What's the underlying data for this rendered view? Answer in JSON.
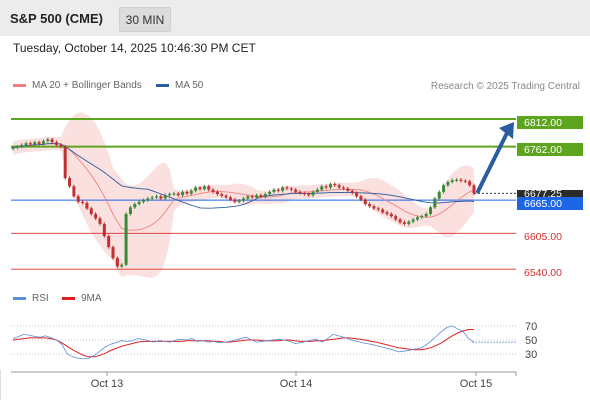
{
  "header": {
    "symbol": "S&P 500 (CME)",
    "timeframe": "30 MIN",
    "datetime": "Tuesday, October 14, 2025 10:46:30 PM CET"
  },
  "legend": {
    "ma20_label": "MA 20 + Bollinger Bands",
    "ma50_label": "MA 50",
    "ma20_color": "#f08080",
    "ma50_color": "#2a5d9f",
    "credit": "Research © 2025 Trading Central"
  },
  "rsi_legend": {
    "rsi_label": "RSI",
    "ma_label": "9MA",
    "rsi_color": "#5b8ed6",
    "ma_color": "#e02020"
  },
  "colors": {
    "resistance": "#5ea51e",
    "pivot": "#1f66e6",
    "support": "#d62f2f",
    "bollinger_fill": "#fbe0e0",
    "candle_up": "#3a8a3a",
    "candle_down": "#c23030",
    "arrow": "#2a5d9f"
  },
  "levels": {
    "r2": "6812.00",
    "r1": "6762.00",
    "current": "6677.25",
    "pivot": "6665.00",
    "s1": "6605.00",
    "s2": "6540.00"
  },
  "chart_data": {
    "type": "candlestick",
    "x_ticks": [
      "Oct 13",
      "Oct 14",
      "Oct 15"
    ],
    "rsi_ticks": [
      "70",
      "50",
      "30"
    ],
    "price_levels": {
      "resistance": [
        6812.0,
        6762.0
      ],
      "current": 6677.25,
      "pivot": 6665.0,
      "support": [
        6605.0,
        6540.0
      ]
    },
    "close": [
      6760,
      6762,
      6765,
      6768,
      6766,
      6770,
      6767,
      6772,
      6775,
      6770,
      6765,
      6762,
      6705,
      6690,
      6672,
      6662,
      6660,
      6650,
      6640,
      6632,
      6622,
      6600,
      6580,
      6560,
      6545,
      6548,
      6640,
      6652,
      6658,
      6662,
      6665,
      6668,
      6670,
      6672,
      6668,
      6674,
      6676,
      6677,
      6674,
      6680,
      6677,
      6682,
      6688,
      6685,
      6690,
      6684,
      6680,
      6676,
      6673,
      6670,
      6666,
      6662,
      6664,
      6668,
      6672,
      6670,
      6674,
      6671,
      6676,
      6680,
      6684,
      6682,
      6688,
      6686,
      6684,
      6680,
      6678,
      6676,
      6674,
      6680,
      6684,
      6690,
      6688,
      6694,
      6692,
      6688,
      6686,
      6682,
      6678,
      6672,
      6666,
      6658,
      6654,
      6650,
      6648,
      6643,
      6640,
      6636,
      6630,
      6625,
      6622,
      6626,
      6630,
      6634,
      6636,
      6640,
      6652,
      6668,
      6680,
      6692,
      6698,
      6701,
      6702,
      6700,
      6699,
      6692,
      6677
    ],
    "ylim": [
      6515,
      6850
    ],
    "indicators": {
      "rsi": [
        52,
        55,
        58,
        57,
        55,
        54,
        56,
        53,
        50,
        44,
        30,
        26,
        24,
        23,
        24,
        28,
        34,
        40,
        44,
        46,
        49,
        48,
        49,
        52,
        51,
        49,
        47,
        49,
        48,
        47,
        50,
        51,
        50,
        52,
        48,
        49,
        47,
        48,
        46,
        47,
        48,
        50,
        52,
        54,
        50,
        47,
        48,
        49,
        50,
        51,
        50,
        48,
        45,
        46,
        48,
        50,
        51,
        47,
        52,
        58,
        56,
        54,
        51,
        49,
        47,
        45,
        44,
        42,
        40,
        38,
        36,
        33,
        34,
        35,
        37,
        38,
        42,
        48,
        55,
        62,
        68,
        70,
        66,
        62,
        52,
        47
      ],
      "rsi_ma": [
        50,
        51,
        52,
        53,
        53,
        53,
        53,
        52,
        50,
        46,
        41,
        36,
        32,
        28,
        26,
        26,
        28,
        31,
        35,
        38,
        41,
        43,
        45,
        47,
        48,
        48,
        48,
        48,
        48,
        48,
        48,
        48,
        49,
        49,
        49,
        49,
        49,
        48,
        48,
        47,
        47,
        48,
        49,
        50,
        50,
        50,
        49,
        49,
        49,
        49,
        50,
        50,
        49,
        48,
        48,
        48,
        49,
        49,
        50,
        51,
        52,
        53,
        53,
        52,
        51,
        50,
        48,
        47,
        45,
        43,
        41,
        39,
        38,
        37,
        36,
        36,
        37,
        39,
        42,
        46,
        51,
        56,
        60,
        63,
        65,
        65
      ]
    },
    "rsi_ylim": [
      10,
      90
    ],
    "projection": {
      "from": 6677.25,
      "to": 6812.0
    }
  }
}
